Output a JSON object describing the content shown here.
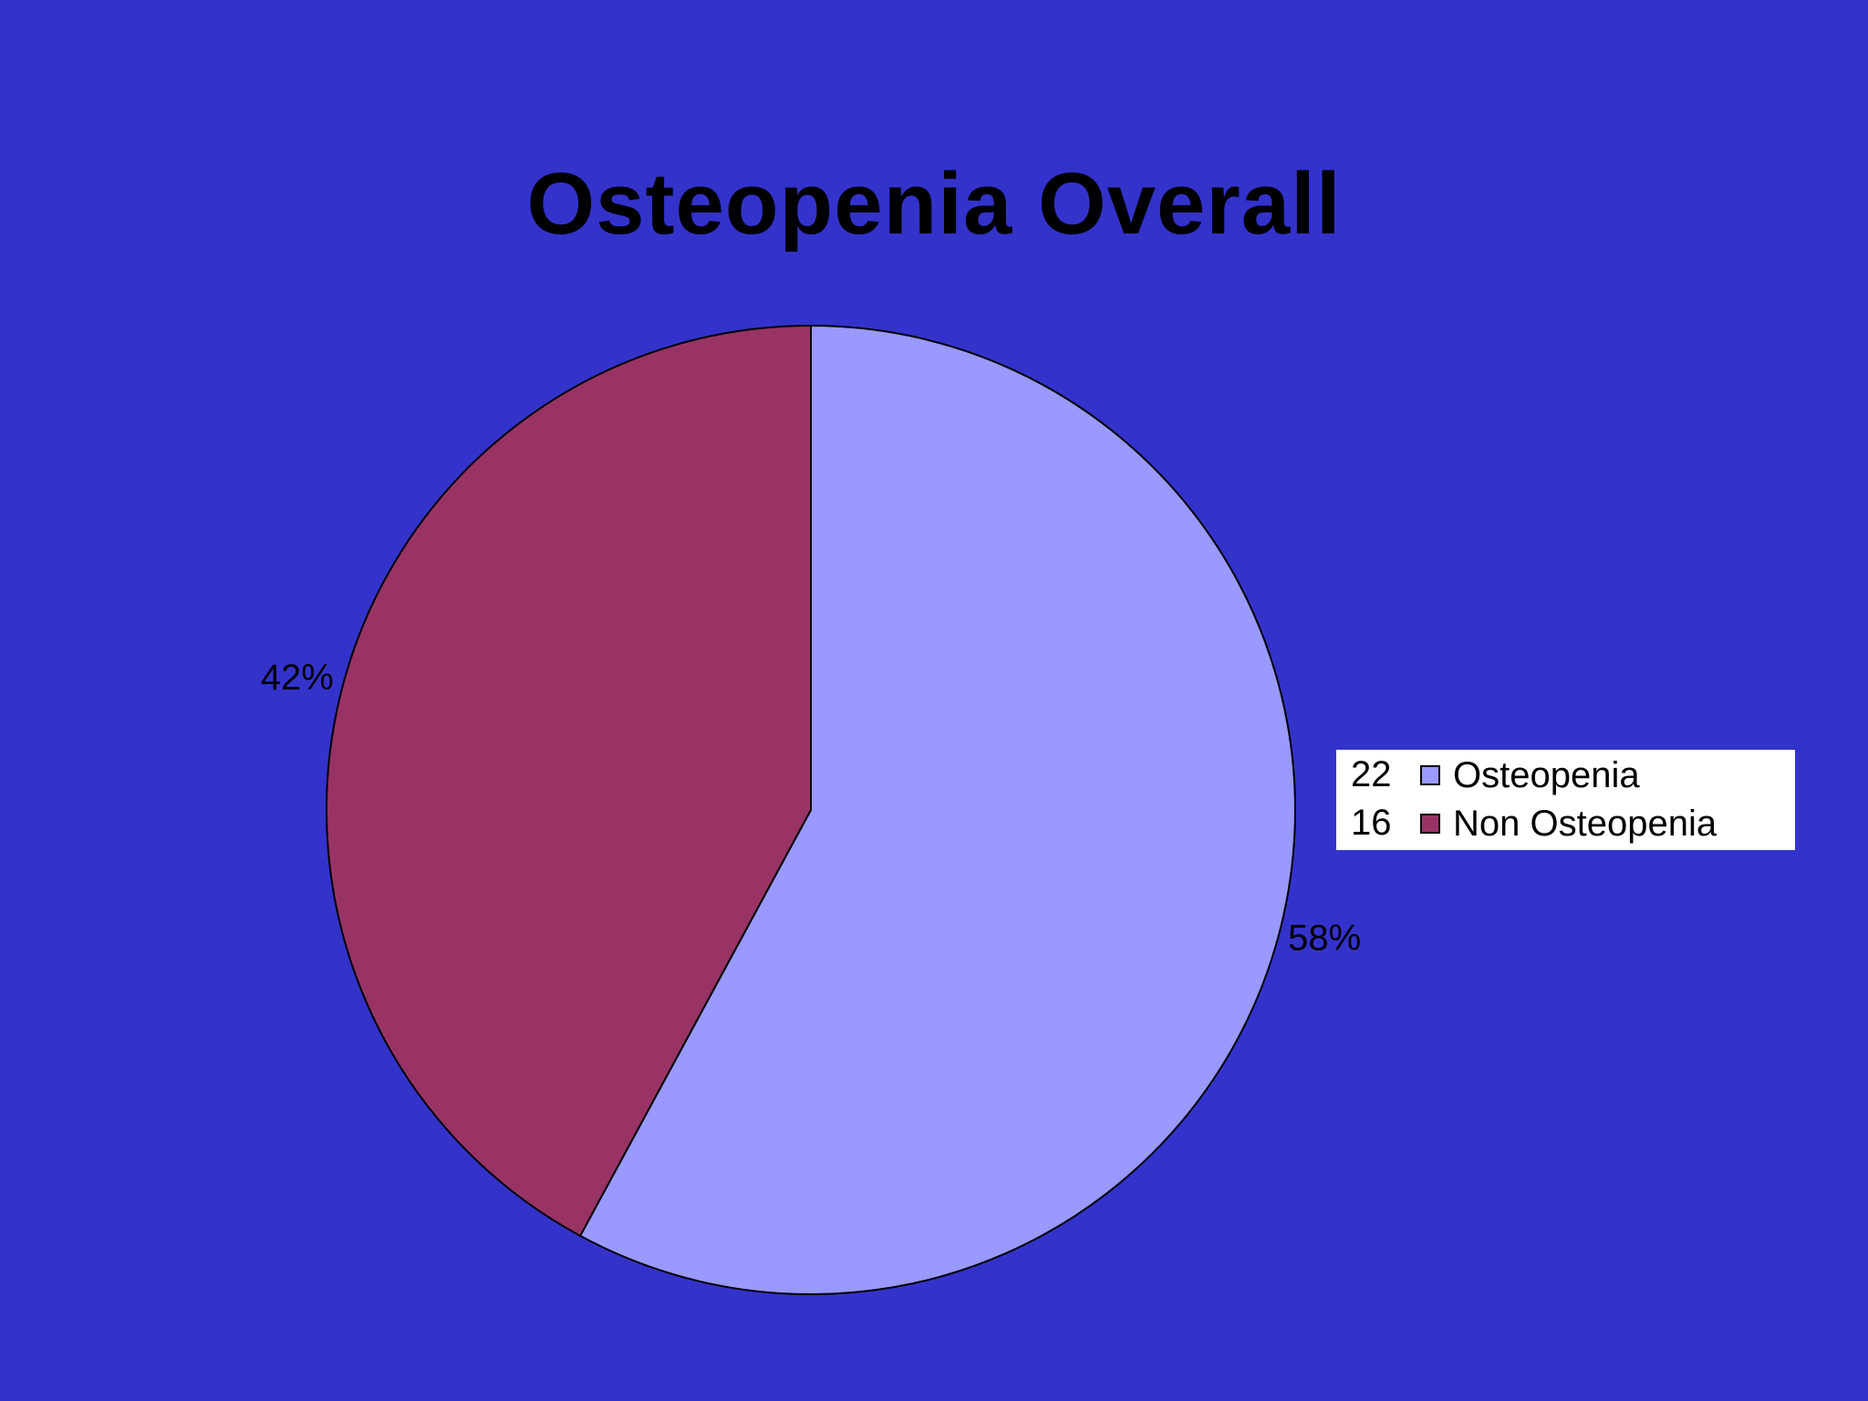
{
  "chart_data": {
    "type": "pie",
    "title": "Osteopenia Overall",
    "slices": [
      {
        "name": "Osteopenia",
        "count": 22,
        "percent_label": "58%",
        "value": 57.9,
        "color": "#9999FF"
      },
      {
        "name": "Non Osteopenia",
        "count": 16,
        "percent_label": "42%",
        "value": 42.1,
        "color": "#993366"
      }
    ],
    "start_angle_deg": 0,
    "direction": "clockwise",
    "legend_placement": "right"
  },
  "colors": {
    "background": "#3333CC",
    "outline": "#000000",
    "legend_background": "#FFFFFF"
  }
}
